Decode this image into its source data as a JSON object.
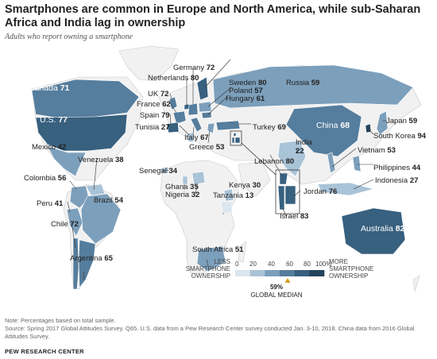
{
  "title": "Smartphones are common in Europe and North America, while sub-Saharan Africa and India lag in ownership",
  "subtitle": "Adults who report owning a smartphone",
  "colors": {
    "c0": "#dbe6ef",
    "c1": "#a9c3d7",
    "c2": "#7c9fbb",
    "c3": "#557d9d",
    "c4": "#38607f",
    "c5": "#23435c",
    "land": "#f1f1f1",
    "marker": "#d9a01e"
  },
  "countries": [
    {
      "name": "Canada",
      "value": "71"
    },
    {
      "name": "U.S.",
      "value": "77"
    },
    {
      "name": "Mexico",
      "value": "42"
    },
    {
      "name": "Venezuela",
      "value": "38"
    },
    {
      "name": "Colombia",
      "value": "56"
    },
    {
      "name": "Peru",
      "value": "41"
    },
    {
      "name": "Brazil",
      "value": "54"
    },
    {
      "name": "Chile",
      "value": "72"
    },
    {
      "name": "Argentina",
      "value": "65"
    },
    {
      "name": "Germany",
      "value": "72"
    },
    {
      "name": "Netherlands",
      "value": "80"
    },
    {
      "name": "UK",
      "value": "72"
    },
    {
      "name": "France",
      "value": "62"
    },
    {
      "name": "Spain",
      "value": "79"
    },
    {
      "name": "Tunisia",
      "value": "27"
    },
    {
      "name": "Italy",
      "value": "67"
    },
    {
      "name": "Greece",
      "value": "53"
    },
    {
      "name": "Sweden",
      "value": "80"
    },
    {
      "name": "Poland",
      "value": "57"
    },
    {
      "name": "Hungary",
      "value": "61"
    },
    {
      "name": "Russia",
      "value": "59"
    },
    {
      "name": "Turkey",
      "value": "69"
    },
    {
      "name": "Lebanon",
      "value": "80"
    },
    {
      "name": "Jordan",
      "value": "76"
    },
    {
      "name": "Israel",
      "value": "83"
    },
    {
      "name": "Senegal",
      "value": "34"
    },
    {
      "name": "Ghana",
      "value": "35"
    },
    {
      "name": "Nigeria",
      "value": "32"
    },
    {
      "name": "Kenya",
      "value": "30"
    },
    {
      "name": "Tanzania",
      "value": "13"
    },
    {
      "name": "South Africa",
      "value": "51"
    },
    {
      "name": "India",
      "value": "22"
    },
    {
      "name": "China",
      "value": "68"
    },
    {
      "name": "Japan",
      "value": "59"
    },
    {
      "name": "South Korea",
      "value": "94"
    },
    {
      "name": "Vietnam",
      "value": "53"
    },
    {
      "name": "Philippines",
      "value": "44"
    },
    {
      "name": "Indonesia",
      "value": "27"
    },
    {
      "name": "Australia",
      "value": "82"
    }
  ],
  "legend": {
    "less": "LESS\nSMARTPHONE\nOWNERSHIP",
    "more": "MORE\nSMARTPHONE\nOWNERSHIP",
    "ticks": [
      "0",
      "20",
      "40",
      "60",
      "80",
      "100%"
    ],
    "median_value": "59%",
    "median_label": "GLOBAL MEDIAN",
    "median": 59
  },
  "footnotes": [
    "Note: Percentages based on total sample.",
    "Source: Spring 2017 Global Attitudes Survey. Q65. U.S. data from a Pew Research Center survey conducted Jan. 3-10, 2018. China data from 2016 Global Attitudes Survey."
  ],
  "brand": "PEW RESEARCH CENTER"
}
